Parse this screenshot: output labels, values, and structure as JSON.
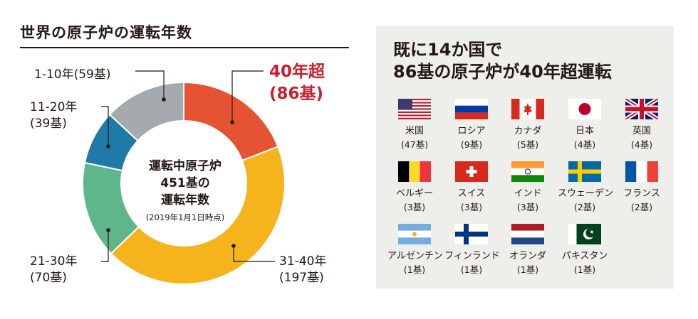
{
  "title": "世界の原子炉の運転年数",
  "chart_data": {
    "type": "pie",
    "donut": true,
    "center_title": [
      "運転中原子炉",
      "451基の",
      "運転年数"
    ],
    "center_note": "(2019年1月1日時点)",
    "total": 451,
    "slices": [
      {
        "label": "40年超",
        "value": 86,
        "value_label": "(86基)",
        "color": "#e55332",
        "highlight": true
      },
      {
        "label": "31-40年",
        "value": 197,
        "value_label": "(197基)",
        "color": "#f5b31c"
      },
      {
        "label": "21-30年",
        "value": 70,
        "value_label": "(70基)",
        "color": "#5fb68a"
      },
      {
        "label": "11-20年",
        "value": 39,
        "value_label": "(39基)",
        "color": "#1f7aa8"
      },
      {
        "label": "1-10年",
        "value": 59,
        "value_label": "(59基)",
        "color": "#a4aaad"
      }
    ]
  },
  "panel": {
    "title_lines": [
      "既に14か国で",
      "86基の原子炉が40年超運転"
    ],
    "countries": [
      {
        "name": "米国",
        "count": "(47基)",
        "flag": "us-flag"
      },
      {
        "name": "ロシア",
        "count": "(9基)",
        "flag": "russia-flag"
      },
      {
        "name": "カナダ",
        "count": "(5基)",
        "flag": "canada-flag"
      },
      {
        "name": "日本",
        "count": "(4基)",
        "flag": "japan-flag"
      },
      {
        "name": "英国",
        "count": "(4基)",
        "flag": "uk-flag"
      },
      {
        "name": "ベルギー",
        "count": "(3基)",
        "flag": "belgium-flag"
      },
      {
        "name": "スイス",
        "count": "(3基)",
        "flag": "switzerland-flag"
      },
      {
        "name": "インド",
        "count": "(3基)",
        "flag": "india-flag"
      },
      {
        "name": "スウェーデン",
        "count": "(2基)",
        "flag": "sweden-flag"
      },
      {
        "name": "フランス",
        "count": "(2基)",
        "flag": "france-flag"
      },
      {
        "name": "アルゼンチン",
        "count": "(1基)",
        "flag": "argentina-flag"
      },
      {
        "name": "フィンランド",
        "count": "(1基)",
        "flag": "finland-flag"
      },
      {
        "name": "オランダ",
        "count": "(1基)",
        "flag": "netherlands-flag"
      },
      {
        "name": "パキスタン",
        "count": "(1基)",
        "flag": "pakistan-flag"
      }
    ]
  }
}
